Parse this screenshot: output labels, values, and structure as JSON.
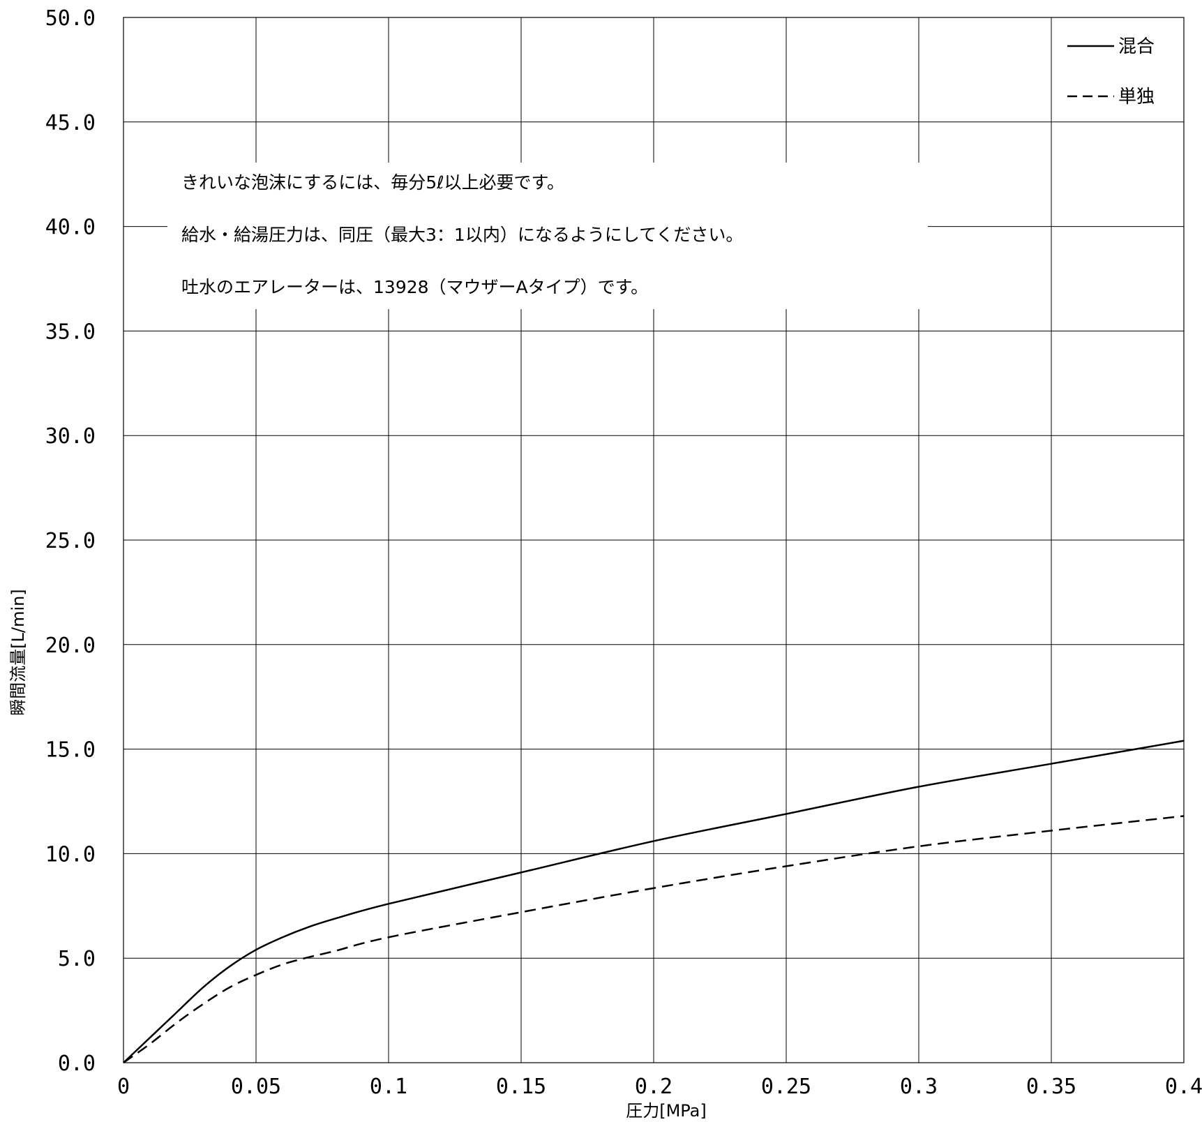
{
  "chart_data": {
    "type": "line",
    "xlabel": "圧力[MPa]",
    "ylabel": "瞬間流量[L/min]",
    "xlim": [
      0,
      0.4
    ],
    "ylim": [
      0,
      50
    ],
    "x_ticks": [
      "0",
      "0.05",
      "0.1",
      "0.15",
      "0.2",
      "0.25",
      "0.3",
      "0.35",
      "0.4"
    ],
    "y_ticks": [
      "0.0",
      "5.0",
      "10.0",
      "15.0",
      "20.0",
      "25.0",
      "30.0",
      "35.0",
      "40.0",
      "45.0",
      "50.0"
    ],
    "grid": true,
    "legend_position": "top-right",
    "series": [
      {
        "name": "混合",
        "style": "solid",
        "color": "#000000",
        "x": [
          0,
          0.01,
          0.02,
          0.03,
          0.04,
          0.05,
          0.06,
          0.07,
          0.08,
          0.1,
          0.15,
          0.2,
          0.25,
          0.3,
          0.35,
          0.4
        ],
        "y": [
          0,
          1.2,
          2.4,
          3.6,
          4.6,
          5.4,
          6.0,
          6.5,
          6.9,
          7.6,
          9.1,
          10.6,
          11.9,
          13.2,
          14.3,
          15.4
        ]
      },
      {
        "name": "単独",
        "style": "dashed",
        "color": "#000000",
        "x": [
          0,
          0.01,
          0.02,
          0.03,
          0.04,
          0.05,
          0.06,
          0.07,
          0.08,
          0.1,
          0.15,
          0.2,
          0.25,
          0.3,
          0.35,
          0.4
        ],
        "y": [
          0,
          0.9,
          1.9,
          2.8,
          3.6,
          4.2,
          4.7,
          5.05,
          5.35,
          6.0,
          7.2,
          8.35,
          9.4,
          10.35,
          11.1,
          11.8
        ]
      }
    ],
    "annotations": [
      "きれいな泡沫にするには、毎分5ℓ以上必要です。",
      "給水・給湯圧力は、同圧（最大3：1以内）になるようにしてください。",
      "吐水のエアレーターは、13928（マウザーAタイプ）です。"
    ]
  }
}
